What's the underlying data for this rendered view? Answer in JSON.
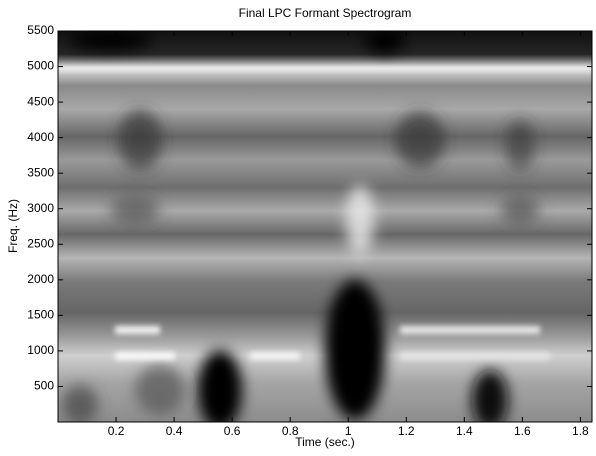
{
  "chart_data": {
    "type": "spectrogram",
    "title": "Final LPC Formant Spectrogram",
    "xlabel": "Time (sec.)",
    "ylabel": "Freq. (Hz)",
    "xlim": [
      0,
      1.84
    ],
    "ylim": [
      0,
      5500
    ],
    "xticks": [
      0.2,
      0.4,
      0.6,
      0.8,
      1,
      1.2,
      1.4,
      1.6,
      1.8
    ],
    "yticks": [
      500,
      1000,
      1500,
      2000,
      2500,
      3000,
      3500,
      4000,
      4500,
      5000,
      5500
    ],
    "colormap": "gray",
    "grid": false
  }
}
